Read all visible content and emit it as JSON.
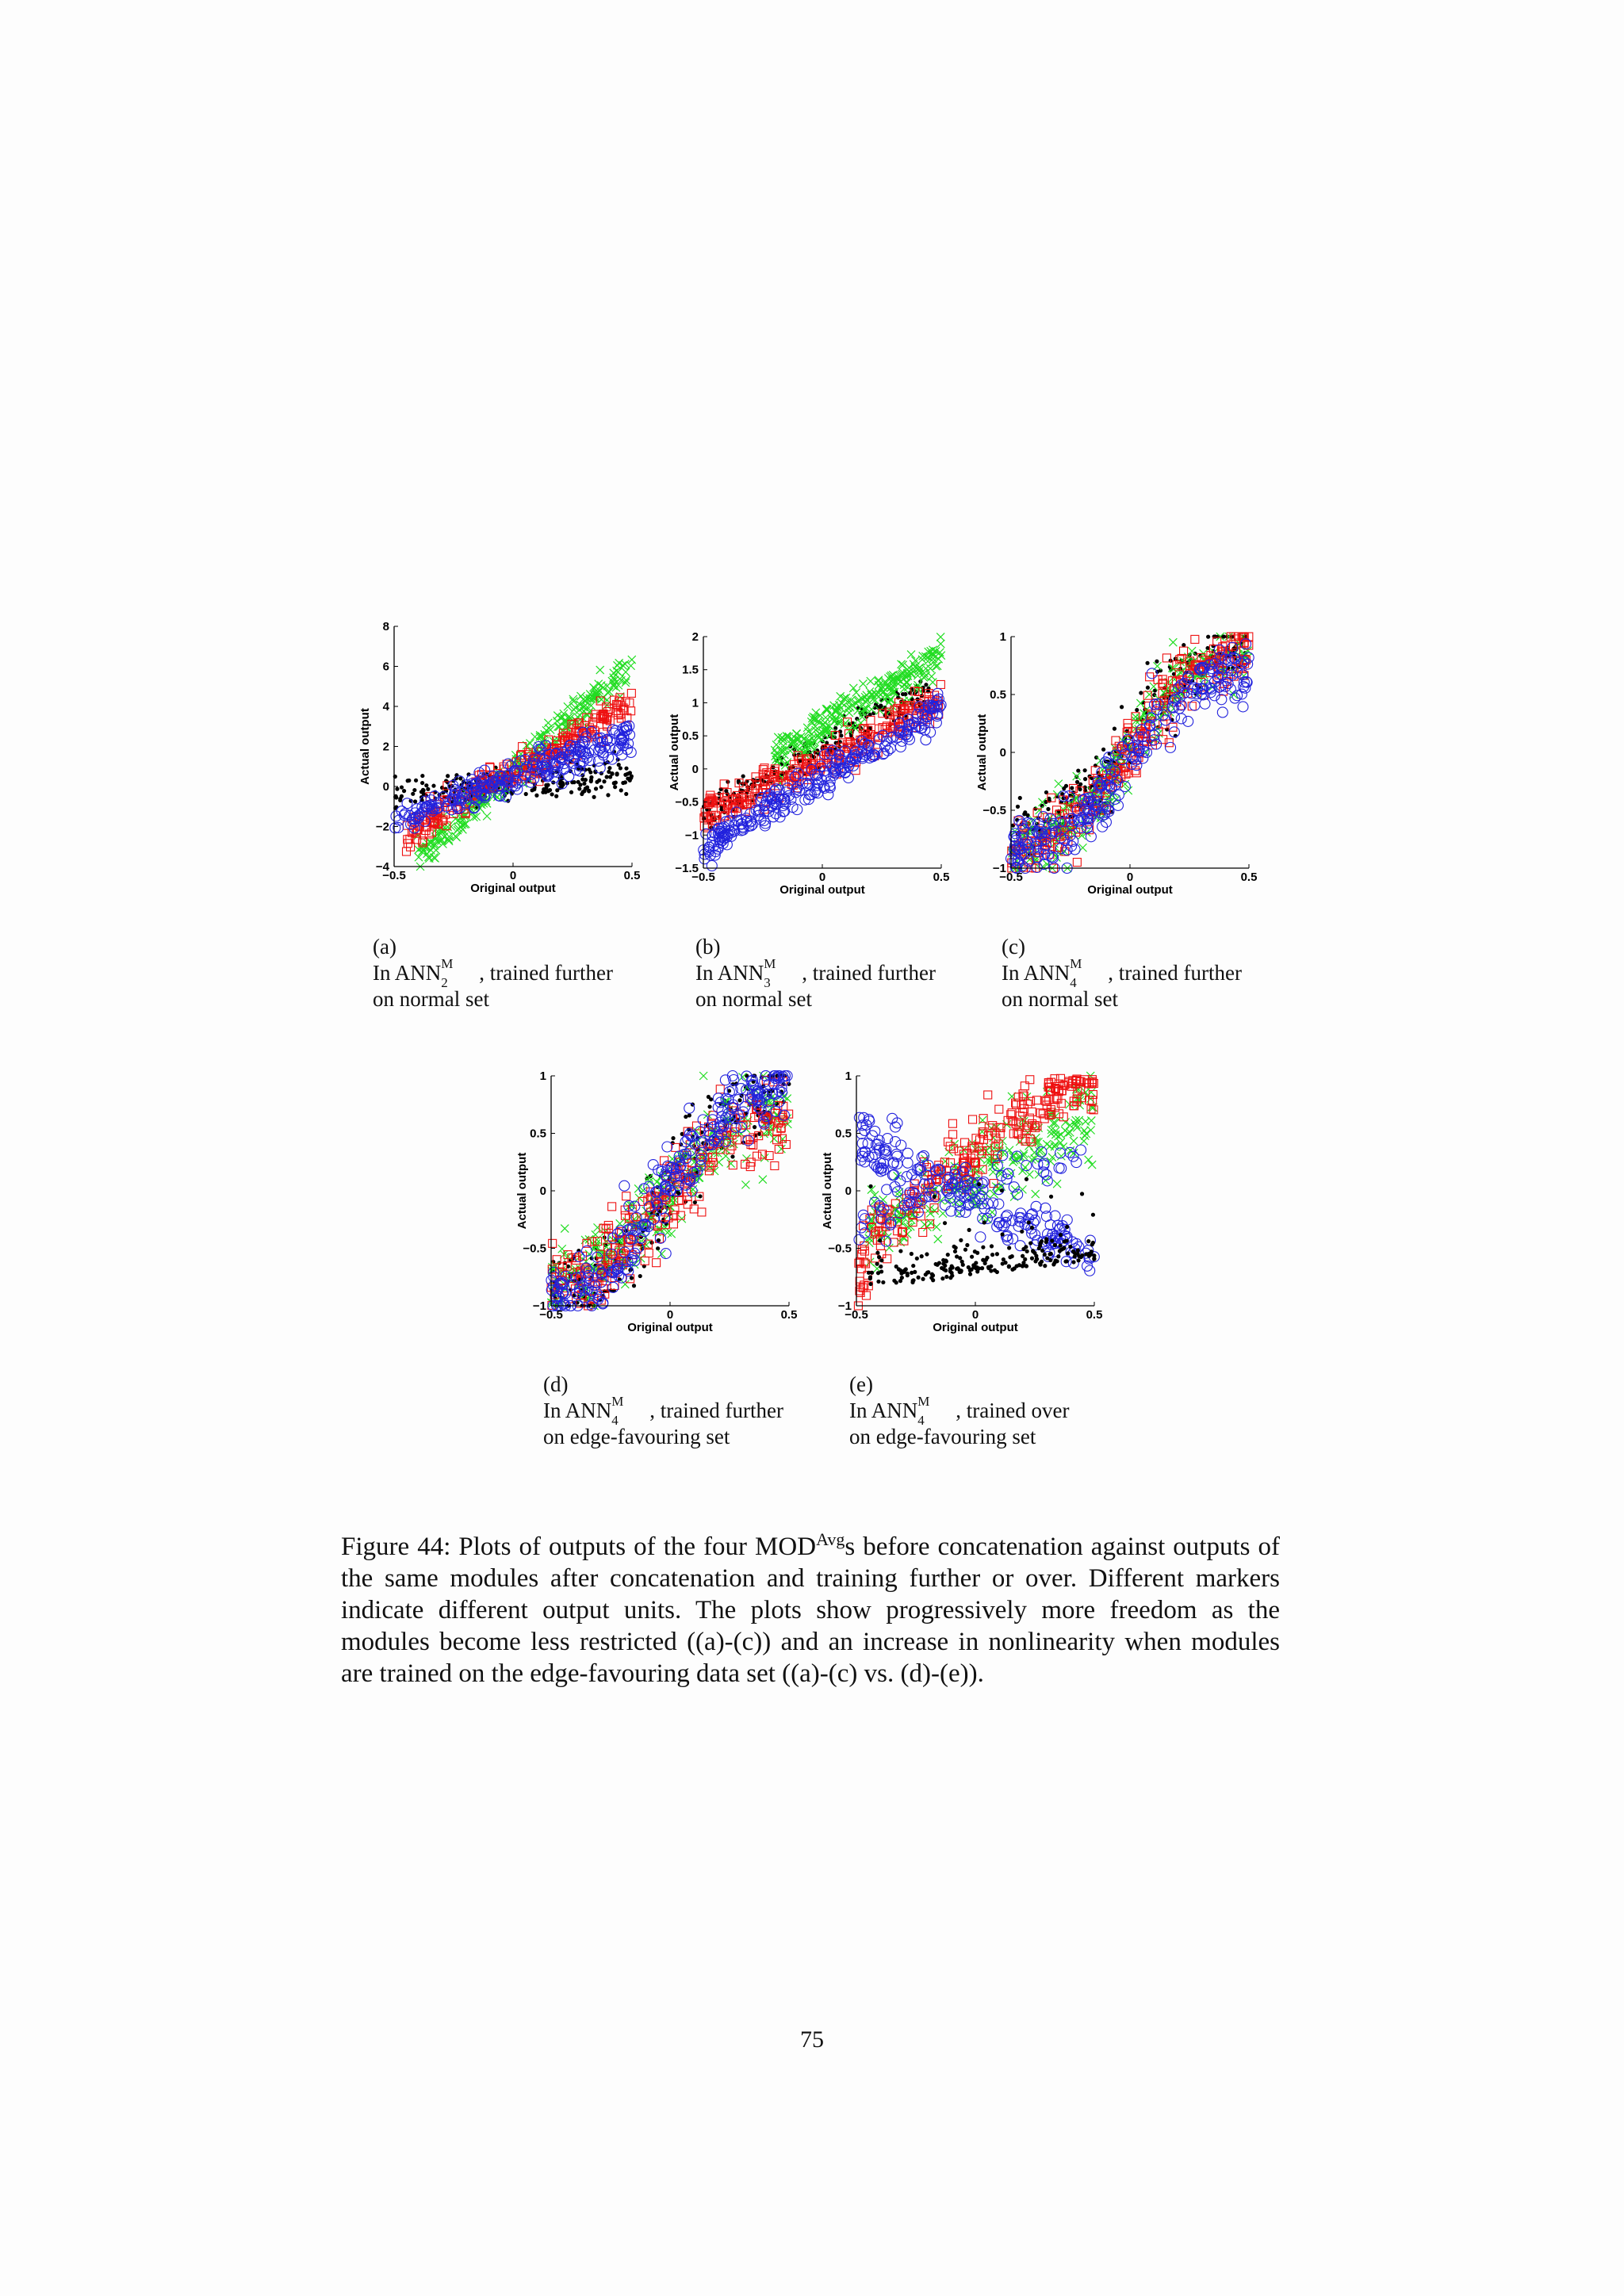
{
  "figure": {
    "caption": {
      "label": "Figure 44:",
      "text_before": " Plots of outputs of the four MOD",
      "superscript": "Avg",
      "text_after": "s before concatenation against outputs of the same modules after concatenation and training further or over. Different markers indicate different output units. The plots show progressively more freedom as the modules become less restricted ((a)-(c)) and an increase in nonlinearity when modules are trained on the edge-favouring data set ((a)-(c) vs. (d)-(e))."
    },
    "subfigures": [
      {
        "letter": "(a)",
        "line1_pre": "In ANN",
        "sup": "M",
        "sub": "2",
        "line1_post": ", trained further",
        "line2": "on normal set"
      },
      {
        "letter": "(b)",
        "line1_pre": "In ANN",
        "sup": "M",
        "sub": "3",
        "line1_post": ", trained further",
        "line2": "on normal set"
      },
      {
        "letter": "(c)",
        "line1_pre": "In ANN",
        "sup": "M",
        "sub": "4",
        "line1_post": ", trained further",
        "line2": "on normal set"
      },
      {
        "letter": "(d)",
        "line1_pre": "In ANN",
        "sup": "M",
        "sub": "4",
        "line1_post": ", trained further",
        "line2": "on edge-favouring set"
      },
      {
        "letter": "(e)",
        "line1_pre": "In ANN",
        "sup": "M",
        "sub": "4",
        "line1_post": ", trained over",
        "line2": "on edge-favouring set"
      }
    ]
  },
  "page_number": "75",
  "colors": {
    "black": "#000000",
    "green": "#22dd22",
    "red": "#ee1111",
    "blue": "#2222dd"
  },
  "chart_data": [
    {
      "type": "scatter",
      "xlabel": "Original output",
      "ylabel": "Actual output",
      "xlim": [
        -0.5,
        0.5
      ],
      "ylim": [
        -4,
        8
      ],
      "xticks": [
        "−0.5",
        "0",
        "0.5"
      ],
      "yticks": [
        "−4",
        "−2",
        "0",
        "2",
        "4",
        "6",
        "8"
      ],
      "series": [
        {
          "marker": "dot",
          "color": "black",
          "approx": "linear",
          "x_range": [
            -0.5,
            0.5
          ],
          "y_range": [
            -0.4,
            0.6
          ]
        },
        {
          "marker": "cross",
          "color": "green",
          "approx": "linear",
          "x_range": [
            -0.4,
            0.5
          ],
          "y_range": [
            -3.6,
            6.1
          ]
        },
        {
          "marker": "square",
          "color": "red",
          "approx": "linear",
          "x_range": [
            -0.45,
            0.5
          ],
          "y_range": [
            -2.5,
            4.2
          ]
        },
        {
          "marker": "circle",
          "color": "blue",
          "approx": "linear",
          "x_range": [
            -0.5,
            0.5
          ],
          "y_range": [
            -1.7,
            2.6
          ]
        }
      ]
    },
    {
      "type": "scatter",
      "xlabel": "Original output",
      "ylabel": "Actual output",
      "xlim": [
        -0.5,
        0.5
      ],
      "ylim": [
        -1.5,
        2
      ],
      "xticks": [
        "−0.5",
        "0",
        "0.5"
      ],
      "yticks": [
        "−1.5",
        "−1",
        "−0.5",
        "0",
        "0.5",
        "1",
        "1.5",
        "2"
      ],
      "series": [
        {
          "marker": "dot",
          "color": "black",
          "approx": "linear",
          "x_range": [
            -0.5,
            0.45
          ],
          "y_range": [
            -0.7,
            1.2
          ]
        },
        {
          "marker": "cross",
          "color": "green",
          "approx": "linear",
          "x_range": [
            -0.2,
            0.5
          ],
          "y_range": [
            0.2,
            1.7
          ]
        },
        {
          "marker": "square",
          "color": "red",
          "approx": "linear",
          "x_range": [
            -0.5,
            0.5
          ],
          "y_range": [
            -0.7,
            1.0
          ]
        },
        {
          "marker": "circle",
          "color": "blue",
          "approx": "linear",
          "x_range": [
            -0.5,
            0.5
          ],
          "y_range": [
            -1.2,
            0.9
          ]
        }
      ]
    },
    {
      "type": "scatter",
      "xlabel": "Original output",
      "ylabel": "Actual output",
      "xlim": [
        -0.5,
        0.5
      ],
      "ylim": [
        -1,
        1
      ],
      "xticks": [
        "−0.5",
        "0",
        "0.5"
      ],
      "yticks": [
        "−1",
        "−0.5",
        "0",
        "0.5",
        "1"
      ],
      "series": [
        {
          "marker": "dot",
          "color": "black",
          "approx": "sigmoid",
          "x_range": [
            -0.5,
            0.5
          ],
          "y_range": [
            -0.7,
            0.95
          ]
        },
        {
          "marker": "cross",
          "color": "green",
          "approx": "sigmoid",
          "x_range": [
            -0.5,
            0.5
          ],
          "y_range": [
            -0.85,
            0.95
          ]
        },
        {
          "marker": "square",
          "color": "red",
          "approx": "sigmoid",
          "x_range": [
            -0.5,
            0.5
          ],
          "y_range": [
            -0.9,
            0.95
          ]
        },
        {
          "marker": "circle",
          "color": "blue",
          "approx": "sigmoid",
          "x_range": [
            -0.5,
            0.5
          ],
          "y_range": [
            -0.9,
            0.75
          ]
        }
      ]
    },
    {
      "type": "scatter",
      "xlabel": "Original output",
      "ylabel": "Actual output",
      "xlim": [
        -0.5,
        0.5
      ],
      "ylim": [
        -1,
        1
      ],
      "xticks": [
        "−0.5",
        "0",
        "0.5"
      ],
      "yticks": [
        "−1",
        "−0.5",
        "0",
        "0.5",
        "1"
      ],
      "series": [
        {
          "marker": "dot",
          "color": "black",
          "approx": "sigmoid",
          "x_range": [
            -0.5,
            0.5
          ],
          "y_range": [
            -0.95,
            0.95
          ]
        },
        {
          "marker": "cross",
          "color": "green",
          "approx": "sigmoid",
          "x_range": [
            -0.5,
            0.5
          ],
          "y_range": [
            -0.8,
            0.75
          ]
        },
        {
          "marker": "square",
          "color": "red",
          "approx": "sigmoid",
          "x_range": [
            -0.5,
            0.5
          ],
          "y_range": [
            -0.8,
            0.7
          ]
        },
        {
          "marker": "circle",
          "color": "blue",
          "approx": "sigmoid",
          "x_range": [
            -0.5,
            0.5
          ],
          "y_range": [
            -0.95,
            0.98
          ]
        }
      ]
    },
    {
      "type": "scatter",
      "xlabel": "Original output",
      "ylabel": "Actual output",
      "xlim": [
        -0.5,
        0.5
      ],
      "ylim": [
        -1,
        1
      ],
      "xticks": [
        "−0.5",
        "0",
        "0.5"
      ],
      "yticks": [
        "−1",
        "−0.5",
        "0",
        "0.5",
        "1"
      ],
      "series": [
        {
          "marker": "dot",
          "color": "black",
          "approx": "cloud",
          "x_range": [
            -0.45,
            0.5
          ],
          "y_range": [
            -1.0,
            0.2
          ]
        },
        {
          "marker": "cross",
          "color": "green",
          "approx": "linear",
          "x_range": [
            -0.45,
            0.5
          ],
          "y_range": [
            -0.35,
            0.65
          ]
        },
        {
          "marker": "square",
          "color": "red",
          "approx": "increasing",
          "x_range": [
            -0.5,
            0.5
          ],
          "y_range": [
            -0.9,
            0.98
          ]
        },
        {
          "marker": "circle",
          "color": "blue",
          "approx": "decreasing",
          "x_range": [
            -0.5,
            0.5
          ],
          "y_range": [
            -0.6,
            0.45
          ]
        }
      ]
    }
  ]
}
